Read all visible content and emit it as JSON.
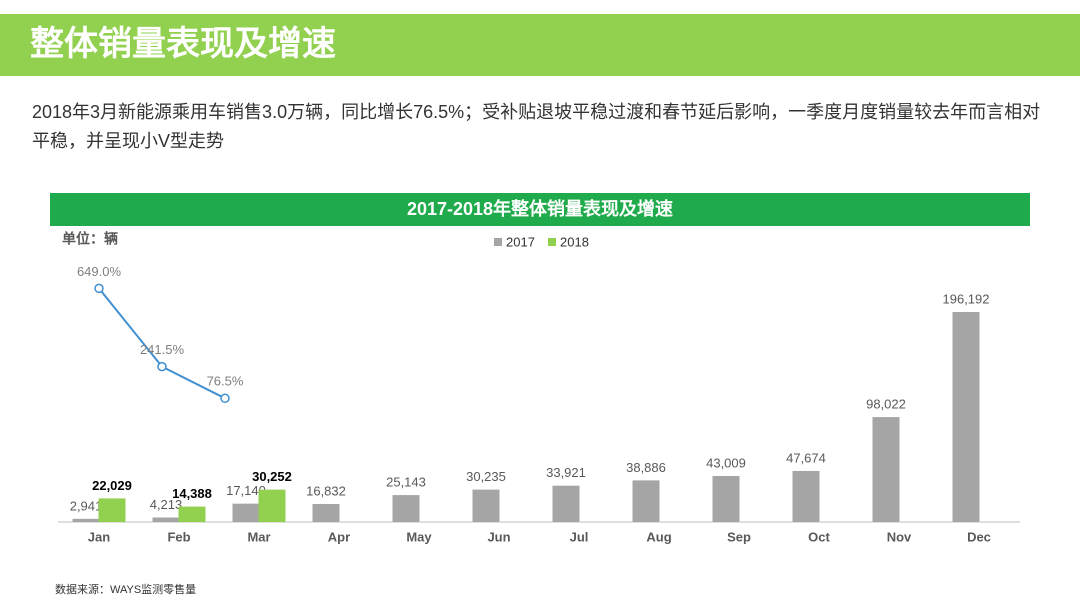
{
  "header": {
    "title": "整体销量表现及增速"
  },
  "summary": "2018年3月新能源乘用车销售3.0万辆，同比增长76.5%；受补贴退坡平稳过渡和春节延后影响，一季度月度销量较去年而言相对平稳，并呈现小V型走势",
  "source": "数据来源：WAYS监测零售量",
  "chart_data": {
    "type": "bar",
    "title": "2017-2018年整体销量表现及增速",
    "unit_label": "单位：辆",
    "categories": [
      "Jan",
      "Feb",
      "Mar",
      "Apr",
      "May",
      "Jun",
      "Jul",
      "Aug",
      "Sep",
      "Oct",
      "Nov",
      "Dec"
    ],
    "series": [
      {
        "name": "2017",
        "color": "#a5a5a5",
        "values": [
          2941,
          4213,
          17140,
          16832,
          25143,
          30235,
          33921,
          38886,
          43009,
          47674,
          98022,
          196192
        ],
        "value_labels": [
          "2,941",
          "4,213",
          "17,140",
          "16,832",
          "25,143",
          "30,235",
          "33,921",
          "38,886",
          "43,009",
          "47,674",
          "98,022",
          "196,192"
        ]
      },
      {
        "name": "2018",
        "color": "#92d050",
        "values": [
          22029,
          14388,
          30252,
          null,
          null,
          null,
          null,
          null,
          null,
          null,
          null,
          null
        ],
        "value_labels": [
          "22,029",
          "14,388",
          "30,252",
          null,
          null,
          null,
          null,
          null,
          null,
          null,
          null,
          null
        ]
      },
      {
        "type": "line",
        "color": "#3f8fd2",
        "values": [
          649.0,
          241.5,
          76.5,
          null,
          null,
          null,
          null,
          null,
          null,
          null,
          null,
          null
        ],
        "value_labels": [
          "649.0%",
          "241.5%",
          "76.5%",
          null,
          null,
          null,
          null,
          null,
          null,
          null,
          null,
          null
        ]
      }
    ],
    "legend": "top"
  }
}
